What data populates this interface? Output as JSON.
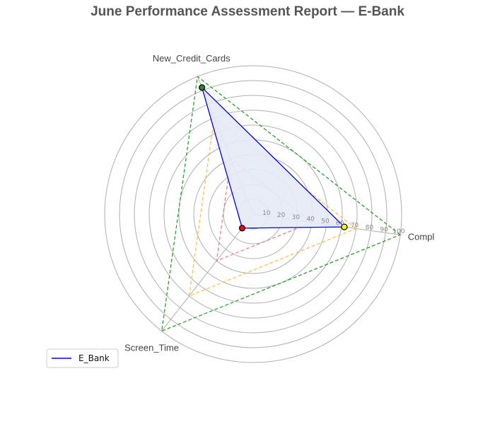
{
  "chart_data": {
    "type": "radar",
    "title": "June Performance Assessment Report — E-Bank",
    "axes": [
      "Compl",
      "New_Credit_Cards",
      "Screen_Time"
    ],
    "rlim": [
      0,
      100
    ],
    "rticks": [
      10,
      20,
      30,
      40,
      50,
      60,
      70,
      80,
      90,
      100
    ],
    "series": [
      {
        "name": "E_Bank",
        "values": [
          62,
          92,
          12
        ],
        "color": "#0000ff",
        "fill": "#e6eaf6"
      }
    ],
    "reference_levels": [
      {
        "value": 40,
        "color": "#f08080"
      },
      {
        "value": 70,
        "color": "#ffc04d"
      },
      {
        "value": 100,
        "color": "#2ca02c"
      }
    ],
    "point_colors": [
      "#ffff00",
      "#228b22",
      "#ff0000"
    ],
    "legend": {
      "location": "lower-left"
    },
    "grid": true
  }
}
